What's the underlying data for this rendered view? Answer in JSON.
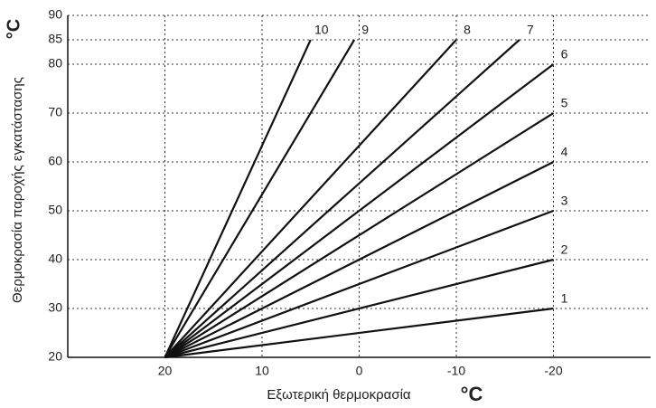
{
  "chart_data": {
    "type": "line",
    "x_label": "Εξωτερική θερμοκρασία",
    "x_unit": "°C",
    "y_label": "Θερμοκρασία παροχής εγκατάστασης",
    "y_unit": "°C",
    "xlim": [
      30,
      -30
    ],
    "ylim": [
      20,
      90
    ],
    "xticks": [
      20,
      10,
      0,
      -10,
      -20
    ],
    "yticks": [
      20,
      30,
      40,
      50,
      60,
      70,
      80,
      85,
      90
    ],
    "grid": true,
    "color": "#111111",
    "series": [
      {
        "name": "1",
        "x": [
          20,
          -20
        ],
        "values": [
          20,
          30
        ]
      },
      {
        "name": "2",
        "x": [
          20,
          -20
        ],
        "values": [
          20,
          40
        ]
      },
      {
        "name": "3",
        "x": [
          20,
          -20
        ],
        "values": [
          20,
          50
        ]
      },
      {
        "name": "4",
        "x": [
          20,
          -20
        ],
        "values": [
          20,
          60
        ]
      },
      {
        "name": "5",
        "x": [
          20,
          -20
        ],
        "values": [
          20,
          70
        ]
      },
      {
        "name": "6",
        "x": [
          20,
          -20
        ],
        "values": [
          20,
          80
        ]
      },
      {
        "name": "7",
        "x": [
          20,
          -16.5
        ],
        "values": [
          20,
          85
        ]
      },
      {
        "name": "8",
        "x": [
          20,
          -10
        ],
        "values": [
          20,
          85
        ]
      },
      {
        "name": "9",
        "x": [
          20,
          0.5
        ],
        "values": [
          20,
          85
        ]
      },
      {
        "name": "10",
        "x": [
          20,
          5
        ],
        "values": [
          20,
          85
        ]
      }
    ]
  }
}
